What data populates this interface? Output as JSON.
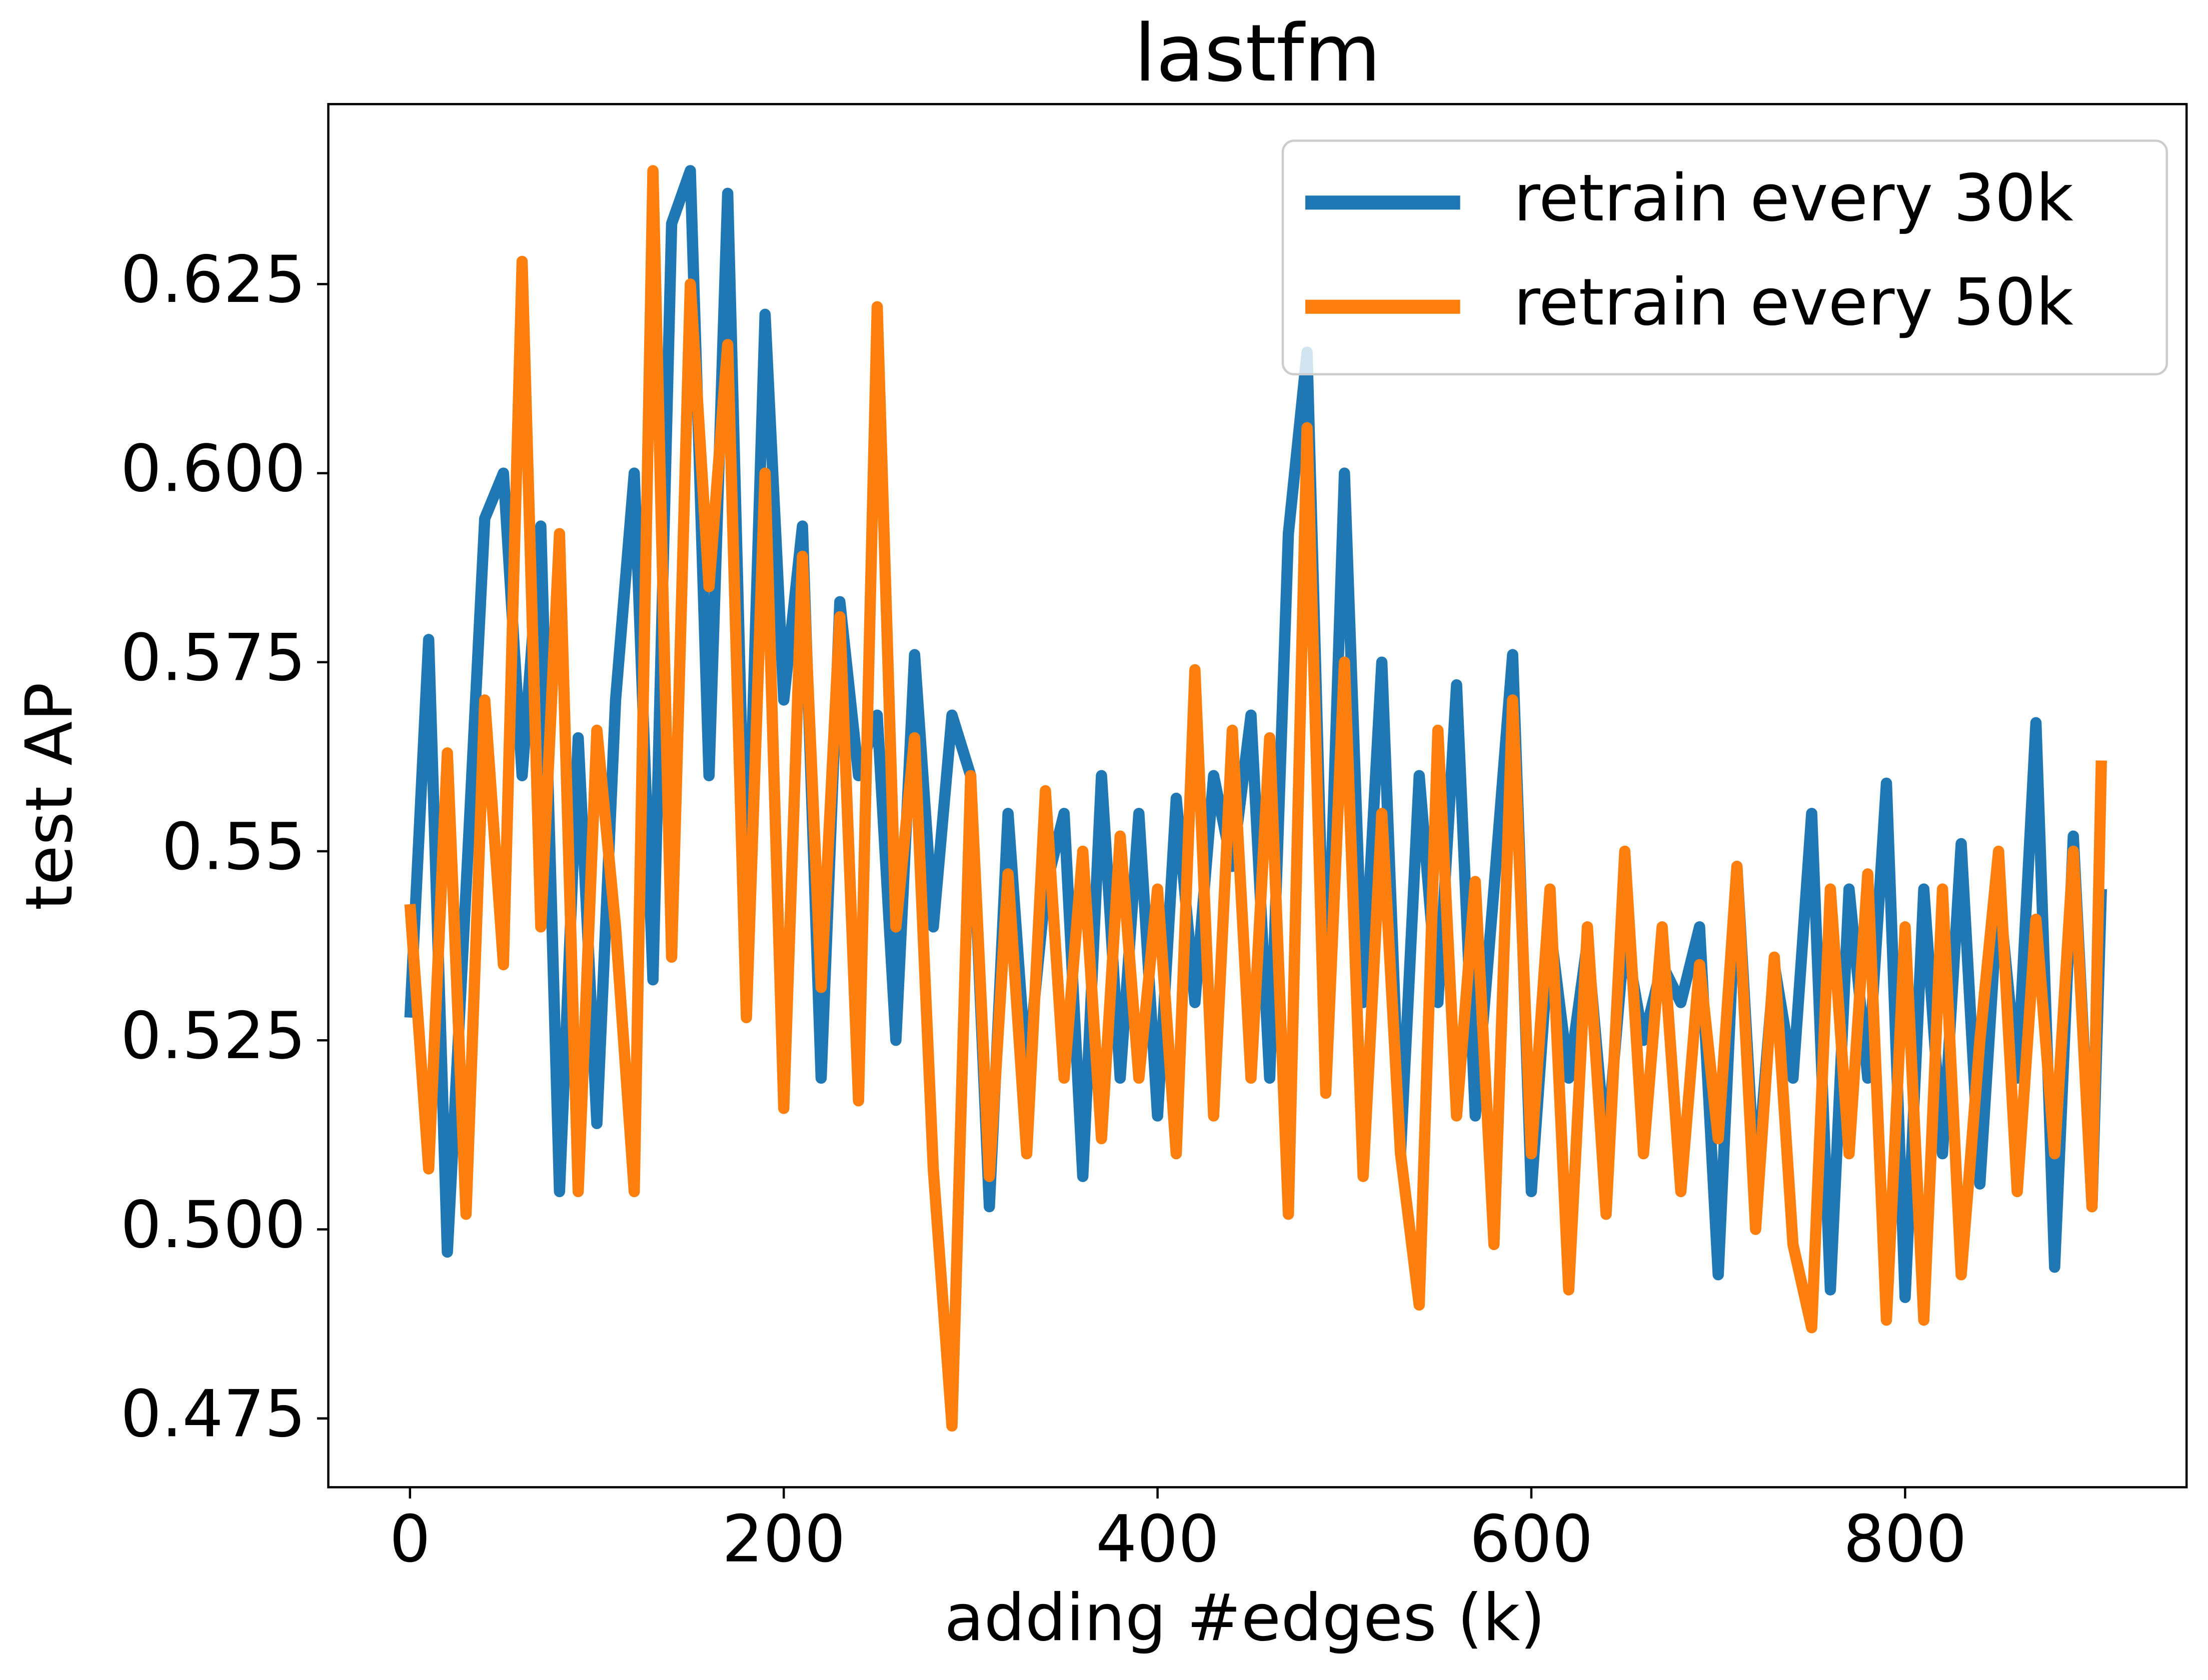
{
  "chart_data": {
    "type": "line",
    "title": "lastfm",
    "xlabel": "adding #edges (k)",
    "ylabel": "test AP",
    "x": [
      0,
      10,
      20,
      30,
      40,
      50,
      60,
      70,
      80,
      90,
      100,
      110,
      120,
      130,
      140,
      150,
      160,
      170,
      180,
      190,
      200,
      210,
      220,
      230,
      240,
      250,
      260,
      270,
      280,
      290,
      300,
      310,
      320,
      330,
      340,
      350,
      360,
      370,
      380,
      390,
      400,
      410,
      420,
      430,
      440,
      450,
      460,
      470,
      480,
      490,
      500,
      510,
      520,
      530,
      540,
      550,
      560,
      570,
      580,
      590,
      600,
      610,
      620,
      630,
      640,
      650,
      660,
      670,
      680,
      690,
      700,
      710,
      720,
      730,
      740,
      750,
      760,
      770,
      780,
      790,
      800,
      810,
      820,
      830,
      840,
      850,
      860,
      870,
      880,
      890,
      900,
      905
    ],
    "series": [
      {
        "name": "retrain every 30k",
        "color": "#1f77b4",
        "values": [
          0.528,
          0.578,
          0.497,
          0.545,
          0.594,
          0.6,
          0.56,
          0.593,
          0.505,
          0.565,
          0.514,
          0.57,
          0.6,
          0.533,
          0.633,
          0.64,
          0.56,
          0.637,
          0.54,
          0.621,
          0.57,
          0.593,
          0.52,
          0.583,
          0.56,
          0.568,
          0.525,
          0.576,
          0.54,
          0.568,
          0.56,
          0.503,
          0.555,
          0.52,
          0.545,
          0.555,
          0.507,
          0.56,
          0.52,
          0.555,
          0.515,
          0.557,
          0.53,
          0.56,
          0.548,
          0.568,
          0.52,
          0.592,
          0.616,
          0.525,
          0.6,
          0.53,
          0.575,
          0.51,
          0.56,
          0.53,
          0.572,
          0.515,
          0.545,
          0.576,
          0.505,
          0.54,
          0.52,
          0.538,
          0.51,
          0.539,
          0.525,
          0.535,
          0.53,
          0.54,
          0.494,
          0.548,
          0.505,
          0.535,
          0.52,
          0.555,
          0.492,
          0.545,
          0.52,
          0.559,
          0.491,
          0.545,
          0.51,
          0.551,
          0.506,
          0.545,
          0.52,
          0.567,
          0.495,
          0.552,
          0.503,
          0.545
        ]
      },
      {
        "name": "retrain every 50k",
        "color": "#ff7f0e",
        "values": [
          0.543,
          0.508,
          0.563,
          0.502,
          0.57,
          0.535,
          0.628,
          0.54,
          0.592,
          0.505,
          0.566,
          0.54,
          0.505,
          0.64,
          0.536,
          0.625,
          0.585,
          0.617,
          0.528,
          0.6,
          0.516,
          0.589,
          0.532,
          0.581,
          0.517,
          0.622,
          0.54,
          0.565,
          0.508,
          0.474,
          0.56,
          0.507,
          0.547,
          0.51,
          0.558,
          0.52,
          0.55,
          0.512,
          0.552,
          0.52,
          0.545,
          0.51,
          0.574,
          0.515,
          0.566,
          0.52,
          0.565,
          0.502,
          0.606,
          0.518,
          0.575,
          0.507,
          0.555,
          0.51,
          0.49,
          0.566,
          0.515,
          0.546,
          0.498,
          0.57,
          0.51,
          0.545,
          0.492,
          0.54,
          0.502,
          0.55,
          0.51,
          0.54,
          0.505,
          0.535,
          0.512,
          0.548,
          0.5,
          0.536,
          0.498,
          0.487,
          0.545,
          0.51,
          0.547,
          0.488,
          0.54,
          0.488,
          0.545,
          0.494,
          0.525,
          0.55,
          0.505,
          0.541,
          0.51,
          0.55,
          0.503,
          0.562
        ]
      }
    ],
    "xlim": [
      -43.7,
      950.6
    ],
    "ylim": [
      0.4659,
      0.6488
    ],
    "xticks": [
      0,
      200,
      400,
      600,
      800
    ],
    "yticks": [
      0.475,
      {
        "value": 0.5,
        "label": "0.500"
      },
      0.525,
      0.55,
      0.575,
      {
        "value": 0.6,
        "label": "0.600"
      },
      0.625
    ],
    "legend": "upper right",
    "grid": false
  }
}
